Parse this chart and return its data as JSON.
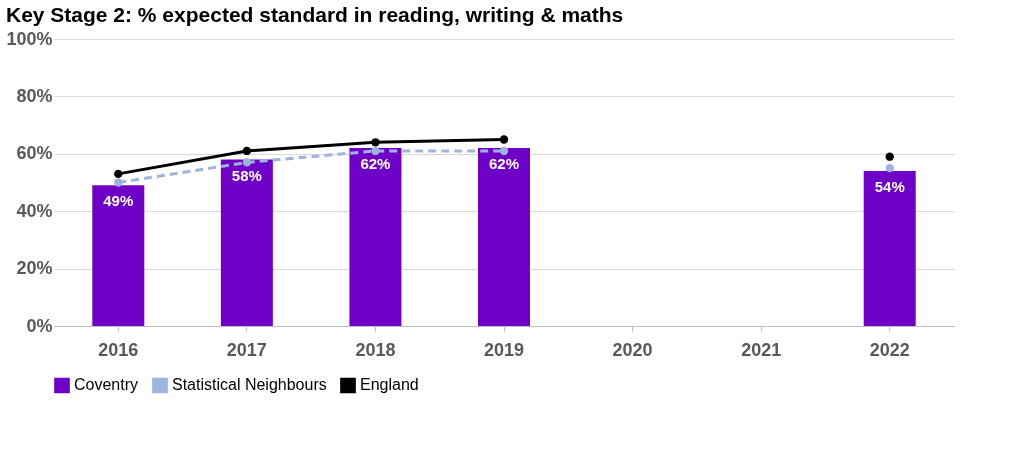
{
  "chart_data": {
    "type": "bar",
    "title": "Key Stage 2: % expected standard in reading, writing & maths",
    "categories": [
      "2016",
      "2017",
      "2018",
      "2019",
      "2020",
      "2021",
      "2022"
    ],
    "series": [
      {
        "name": "Coventry",
        "color": "#6e00c8",
        "values": [
          49,
          58,
          62,
          62,
          null,
          null,
          54
        ],
        "value_labels": [
          "49%",
          "58%",
          "62%",
          "62%",
          null,
          null,
          "54%"
        ]
      },
      {
        "name": "Statistical Neighbours",
        "type": "line",
        "color": "#9db4df",
        "line_style": "dashed",
        "marker": "circle",
        "values": [
          50,
          57,
          61,
          61,
          null,
          null,
          55
        ]
      },
      {
        "name": "England",
        "type": "line",
        "color": "#000000",
        "line_style": "solid",
        "marker": "circle",
        "values": [
          53,
          61,
          64,
          65,
          null,
          null,
          59
        ]
      }
    ],
    "ylim": [
      0,
      100
    ],
    "yticks": [
      {
        "value": 0,
        "label": "0%"
      },
      {
        "value": 20,
        "label": "20%"
      },
      {
        "value": 40,
        "label": "40%"
      },
      {
        "value": 60,
        "label": "60%"
      },
      {
        "value": 80,
        "label": "80%"
      },
      {
        "value": 100,
        "label": "100%"
      }
    ],
    "grid": "y",
    "legend": "bottom"
  }
}
